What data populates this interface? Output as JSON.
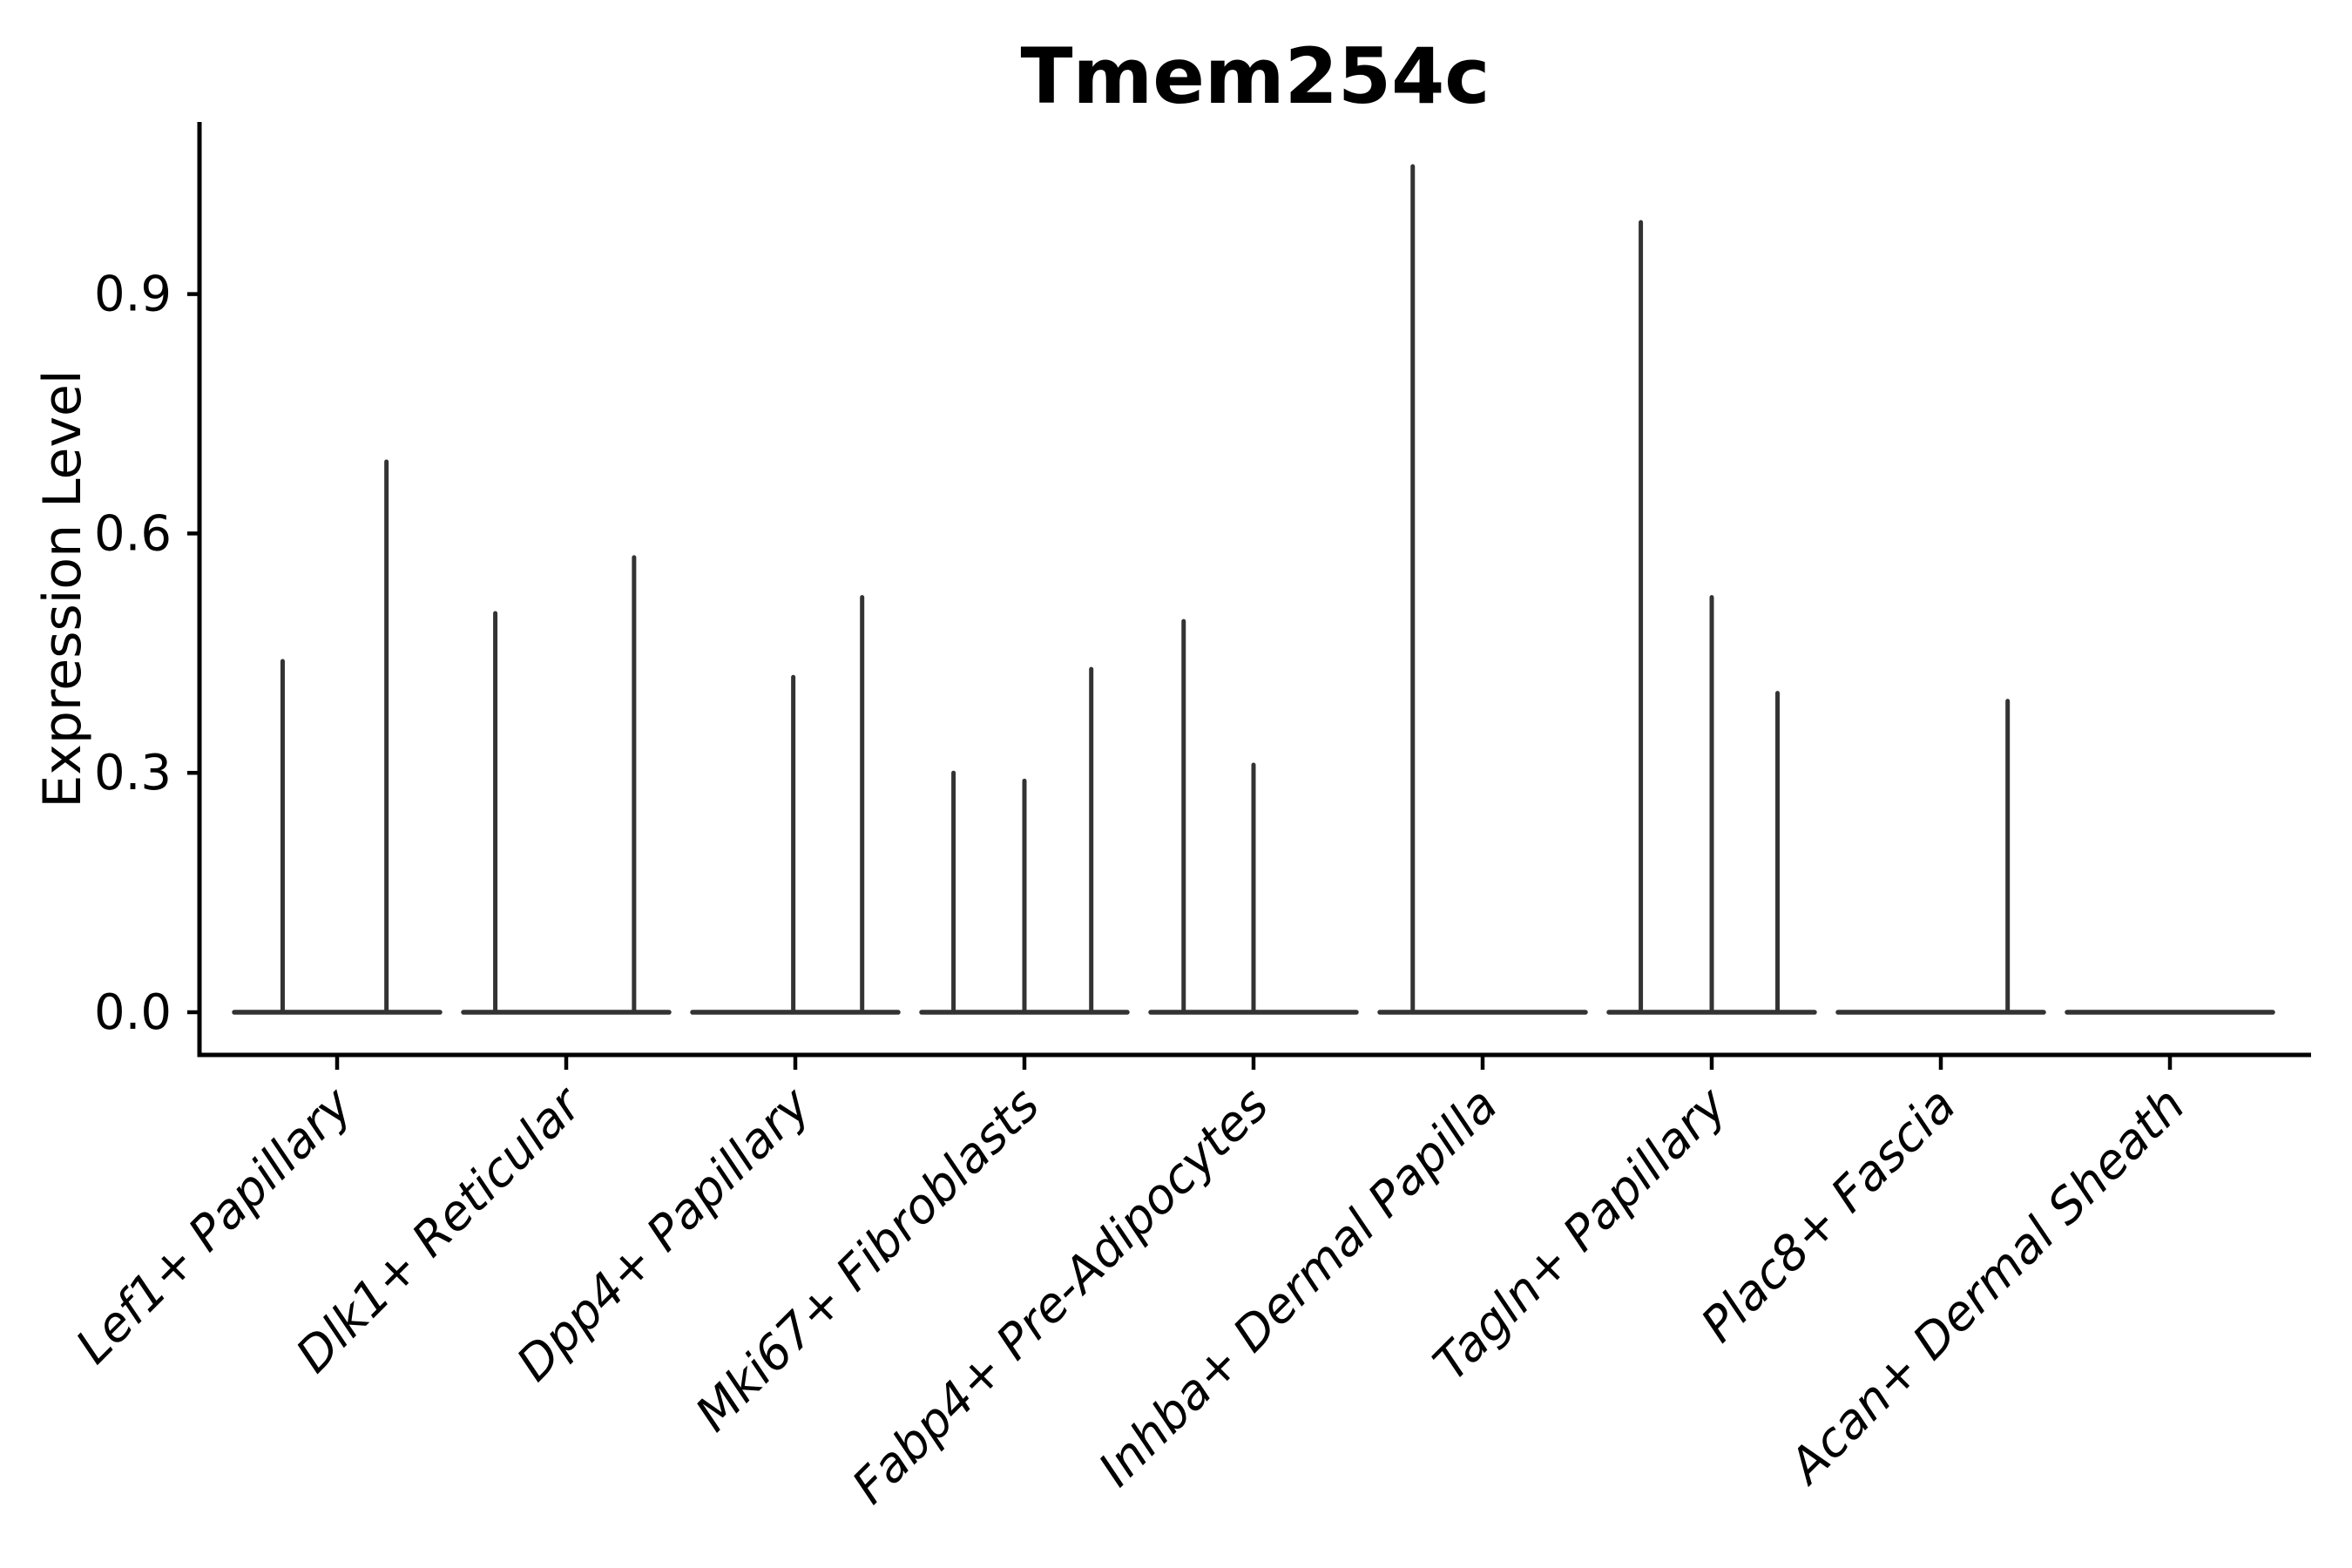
{
  "figure": {
    "background": "#ffffff"
  },
  "chart_data": {
    "type": "violin",
    "title": "Tmem254c",
    "xlabel": "",
    "ylabel": "Expression Level",
    "yticks": [
      "0.0",
      "0.3",
      "0.6",
      "0.9"
    ],
    "ytick_values": [
      0.0,
      0.3,
      0.6,
      0.9
    ],
    "ylim": [
      0.0,
      1.12
    ],
    "grid": false,
    "legend": "none",
    "x_tick_rotation_deg": 45,
    "categories": [
      "Lef1+ Papillary",
      "Dlk1+ Reticular",
      "Dpp4+ Papillary",
      "Mki67+ Fibroblasts",
      "Fabp4+ Pre-Adipocytes",
      "Inhba+ Dermal Papilla",
      "Tagln+ Papillary",
      "Plac8+ Fascia",
      "Acan+ Dermal Sheath"
    ],
    "violins": [
      {
        "category": "Lef1+ Papillary",
        "baseline_value": 0.0,
        "spikes": [
          {
            "offset_frac": -0.53,
            "value": 0.44
          },
          {
            "offset_frac": 0.48,
            "value": 0.69
          }
        ]
      },
      {
        "category": "Dlk1+ Reticular",
        "baseline_value": 0.0,
        "spikes": [
          {
            "offset_frac": -0.69,
            "value": 0.5
          },
          {
            "offset_frac": 0.66,
            "value": 0.57
          }
        ]
      },
      {
        "category": "Dpp4+ Papillary",
        "baseline_value": 0.0,
        "spikes": [
          {
            "offset_frac": -0.02,
            "value": 0.42
          },
          {
            "offset_frac": 0.65,
            "value": 0.52
          }
        ]
      },
      {
        "category": "Mki67+ Fibroblasts",
        "baseline_value": 0.0,
        "spikes": [
          {
            "offset_frac": -0.69,
            "value": 0.3
          },
          {
            "offset_frac": 0.0,
            "value": 0.29
          },
          {
            "offset_frac": 0.65,
            "value": 0.43
          }
        ]
      },
      {
        "category": "Fabp4+ Pre-Adipocytes",
        "baseline_value": 0.0,
        "spikes": [
          {
            "offset_frac": -0.68,
            "value": 0.49
          },
          {
            "offset_frac": 0.0,
            "value": 0.31
          }
        ]
      },
      {
        "category": "Inhba+ Dermal Papilla",
        "baseline_value": 0.0,
        "spikes": [
          {
            "offset_frac": -0.68,
            "value": 1.06
          }
        ]
      },
      {
        "category": "Tagln+ Papillary",
        "baseline_value": 0.0,
        "spikes": [
          {
            "offset_frac": -0.69,
            "value": 0.99
          },
          {
            "offset_frac": 0.0,
            "value": 0.52
          },
          {
            "offset_frac": 0.64,
            "value": 0.4
          }
        ]
      },
      {
        "category": "Plac8+ Fascia",
        "baseline_value": 0.0,
        "spikes": [
          {
            "offset_frac": 0.65,
            "value": 0.39
          }
        ]
      },
      {
        "category": "Acan+ Dermal Sheath",
        "baseline_value": 0.0,
        "spikes": []
      }
    ],
    "colors": {
      "violin_stroke": "#333333",
      "axis": "#000000",
      "text": "#000000",
      "background": "#ffffff"
    }
  }
}
